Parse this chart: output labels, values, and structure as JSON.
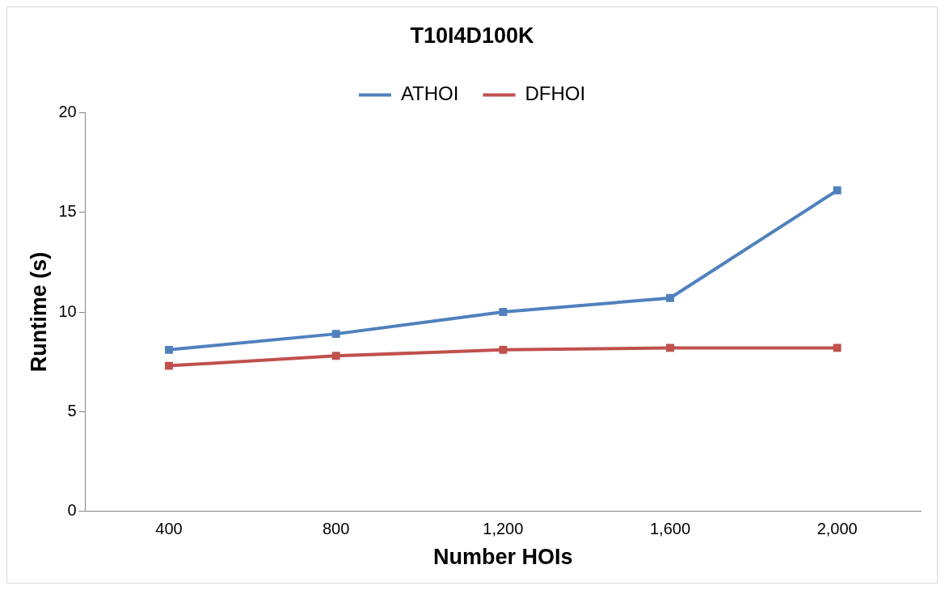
{
  "chart_data": {
    "type": "line",
    "title": "T10I4D100K",
    "xlabel": "Number HOIs",
    "ylabel": "Runtime (s)",
    "categories": [
      "400",
      "800",
      "1,200",
      "1,600",
      "2,000"
    ],
    "series": [
      {
        "name": "ATHOI",
        "color": "#4f81bd",
        "values": [
          8.1,
          8.9,
          10.0,
          10.7,
          16.1
        ]
      },
      {
        "name": "DFHOI",
        "color": "#c0504d",
        "values": [
          7.3,
          7.8,
          8.1,
          8.2,
          8.2
        ]
      }
    ],
    "ylim": [
      0,
      20
    ],
    "yticks": [
      0,
      5,
      10,
      15,
      20
    ],
    "grid": false,
    "legend": "top",
    "marker": "square",
    "line_style": "solid"
  }
}
